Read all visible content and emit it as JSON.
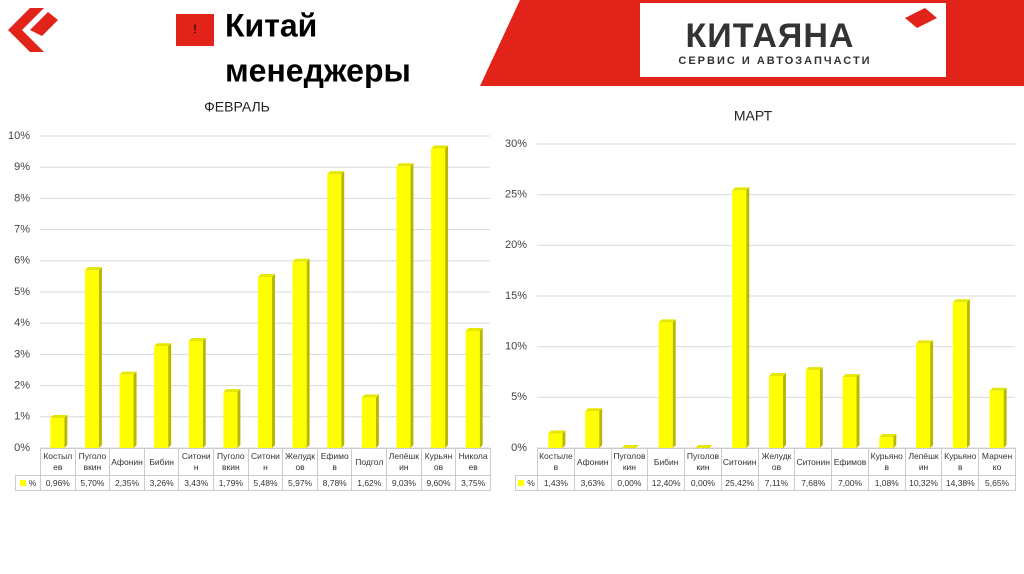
{
  "header": {
    "icon": "!",
    "title_lines": [
      "Китай",
      "менеджеры"
    ],
    "logo": "КИТАЯНА",
    "logo_sub": "СЕРВИС И АВТОЗАПЧАСТИ"
  },
  "chart_data": [
    {
      "type": "bar",
      "title": "ФЕВРАЛЬ",
      "categories": [
        "Костылев",
        "Пуголовкин",
        "Афонин",
        "Бибин",
        "Ситонин",
        "Пуголовкин",
        "Ситонин",
        "Желудков",
        "Ефимов",
        "Подгол",
        "Лепёшкин",
        "Курьянов",
        "Николаев"
      ],
      "series": [
        {
          "name": "%",
          "color": "#ffff00",
          "values": [
            0.96,
            5.7,
            2.35,
            3.26,
            3.43,
            1.79,
            5.48,
            5.97,
            8.78,
            1.62,
            9.03,
            9.6,
            3.75
          ],
          "value_labels": [
            "0,96%",
            "5,70%",
            "2,35%",
            "3,26%",
            "3,43%",
            "1,79%",
            "5,48%",
            "5,97%",
            "8,78%",
            "1,62%",
            "9,03%",
            "9,60%",
            "3,75%"
          ]
        }
      ],
      "ylim": [
        0,
        10
      ],
      "yticks": [
        {
          "value": 0,
          "label": "0%"
        },
        {
          "value": 1,
          "label": "1%"
        },
        {
          "value": 2,
          "label": "2%"
        },
        {
          "value": 3,
          "label": "3%"
        },
        {
          "value": 4,
          "label": "4%"
        },
        {
          "value": 5,
          "label": "5%"
        },
        {
          "value": 6,
          "label": "6%"
        },
        {
          "value": 7,
          "label": "7%"
        },
        {
          "value": 8,
          "label": "8%"
        },
        {
          "value": 9,
          "label": "9%"
        },
        {
          "value": 10,
          "label": "10%"
        }
      ],
      "grid": true
    },
    {
      "type": "bar",
      "title": "МАРТ",
      "categories": [
        "Костылев",
        "Афонин",
        "Пуголовкин",
        "Бибин",
        "Пуголовкин",
        "Ситонин",
        "Желудков",
        "Ситонин",
        "Ефимов",
        "Курьянов",
        "Лепёшкин",
        "Курьянов",
        "Марченко"
      ],
      "series": [
        {
          "name": "%",
          "color": "#ffff00",
          "values": [
            1.43,
            3.63,
            0,
            12.4,
            0,
            25.42,
            7.11,
            7.68,
            7.0,
            1.08,
            10.32,
            14.38,
            5.65
          ],
          "value_labels": [
            "1,43%",
            "3,63%",
            "0,00%",
            "12,40%",
            "0,00%",
            "25,42%",
            "7,11%",
            "7,68%",
            "7,00%",
            "1,08%",
            "10,32%",
            "14,38%",
            "5,65%"
          ]
        }
      ],
      "ylim": [
        0,
        30
      ],
      "yticks": [
        {
          "value": 0,
          "label": "0%"
        },
        {
          "value": 5,
          "label": "5%"
        },
        {
          "value": 10,
          "label": "10%"
        },
        {
          "value": 15,
          "label": "15%"
        },
        {
          "value": 20,
          "label": "20%"
        },
        {
          "value": 25,
          "label": "25%"
        },
        {
          "value": 30,
          "label": "30%"
        }
      ],
      "grid": true
    }
  ]
}
